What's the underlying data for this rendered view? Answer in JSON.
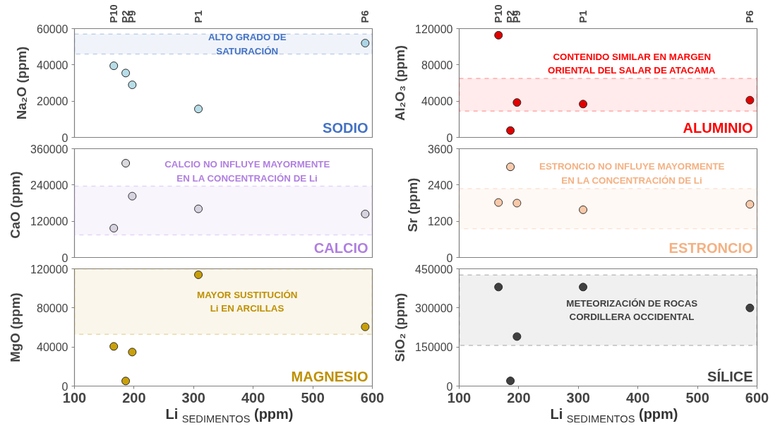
{
  "chart_data": [
    {
      "type": "scatter",
      "title": "SODIO",
      "ylabel": "Na₂O (ppm)",
      "x": [
        166,
        186,
        197,
        308,
        588
      ],
      "series": [
        {
          "color": "#b7dde8",
          "values": [
            39500,
            35500,
            29000,
            15700,
            52000
          ]
        }
      ],
      "xlim": [
        100,
        600
      ],
      "ylim": [
        0,
        60000
      ],
      "yticks": [
        0,
        20000,
        40000,
        60000
      ],
      "annotations": [
        "P10",
        "P2",
        "P9",
        "P1",
        "P6"
      ],
      "bands": [
        {
          "axis": "y",
          "from": 46000,
          "to": 57000,
          "label": "ALTO GRADO DE\nSATURACIÓN",
          "color": "#4472c4"
        }
      ],
      "tick_labels": "y",
      "marker": "circle",
      "grid": false
    },
    {
      "type": "scatter",
      "title": "ALUMINIO",
      "ylabel": "Al₂O₃ (ppm)",
      "x": [
        166,
        186,
        197,
        308,
        588
      ],
      "series": [
        {
          "color": "#e00000",
          "values": [
            112700,
            7600,
            38500,
            36800,
            41100
          ]
        }
      ],
      "xlim": [
        100,
        600
      ],
      "ylim": [
        0,
        120000
      ],
      "yticks": [
        0,
        40000,
        80000,
        120000
      ],
      "annotations": [
        "P10",
        "P2",
        "P9",
        "P1",
        "P6"
      ],
      "bands": [
        {
          "axis": "y",
          "from": 29000,
          "to": 65000,
          "label": "CONTENIDO SIMILAR EN MARGEN\nORIENTAL DEL SALAR DE ATACAMA",
          "color": "#ff0000"
        }
      ],
      "tick_labels": "y",
      "marker": "circle",
      "grid": false
    },
    {
      "type": "scatter",
      "title": "CALCIO",
      "ylabel": "CaO  (ppm)",
      "x": [
        166,
        186,
        197,
        308,
        588
      ],
      "series": [
        {
          "color": "#d9d9de",
          "values": [
            97000,
            312000,
            203000,
            161000,
            144000
          ]
        }
      ],
      "xlim": [
        100,
        600
      ],
      "ylim": [
        0,
        360000
      ],
      "yticks": [
        0,
        120000,
        240000,
        360000
      ],
      "bands": [
        {
          "axis": "y",
          "from": 75000,
          "to": 236000,
          "label": "CALCIO NO INFLUYE MAYORMENTE\nEN LA CONCENTRACIÓN DE Li",
          "color": "#b07fe0"
        }
      ],
      "tick_labels": "y",
      "marker": "circle",
      "grid": false
    },
    {
      "type": "scatter",
      "title": "ESTRONCIO",
      "ylabel": "Sr  (ppm)",
      "x": [
        166,
        186,
        197,
        308,
        588
      ],
      "series": [
        {
          "color": "#f8cbad",
          "values": [
            1820,
            3000,
            1800,
            1580,
            1760
          ]
        }
      ],
      "xlim": [
        100,
        600
      ],
      "ylim": [
        0,
        3600
      ],
      "yticks": [
        0,
        1200,
        2400,
        3600
      ],
      "bands": [
        {
          "axis": "y",
          "from": 950,
          "to": 2280,
          "label": "ESTRONCIO NO INFLUYE MAYORMENTE\nEN LA CONCENTRACIÓN DE Li",
          "color": "#f4b183"
        }
      ],
      "tick_labels": "y",
      "marker": "circle",
      "grid": false
    },
    {
      "type": "scatter",
      "title": "MAGNESIO",
      "ylabel": "MgO (ppm)",
      "xlabel": "Li $_{SEDIMENTOS}$ (ppm)",
      "x": [
        166,
        186,
        197,
        308,
        588
      ],
      "series": [
        {
          "color": "#c9a00b",
          "values": [
            40600,
            5200,
            34800,
            113900,
            60600
          ]
        }
      ],
      "xlim": [
        100,
        600
      ],
      "xticks": [
        100,
        200,
        300,
        400,
        500,
        600
      ],
      "ylim": [
        0,
        120000
      ],
      "yticks": [
        0,
        40000,
        80000,
        120000
      ],
      "bands": [
        {
          "axis": "y",
          "from": 53000,
          "to": 120000,
          "label": "MAYOR SUSTITUCIÓN\nLi EN ARCILLAS",
          "color": "#bf9000"
        }
      ],
      "marker": "circle",
      "grid": false
    },
    {
      "type": "scatter",
      "title": "SÍLICE",
      "ylabel": "SiO₂ (ppm)",
      "xlabel": "Li $_{SEDIMENTOS}$ (ppm)",
      "x": [
        166,
        186,
        197,
        308,
        588
      ],
      "series": [
        {
          "color": "#404040",
          "values": [
            380000,
            20000,
            190000,
            380000,
            300000
          ]
        }
      ],
      "xlim": [
        100,
        600
      ],
      "xticks": [
        100,
        200,
        300,
        400,
        500,
        600
      ],
      "ylim": [
        0,
        450000
      ],
      "yticks": [
        0,
        150000,
        300000,
        450000
      ],
      "bands": [
        {
          "axis": "y",
          "from": 156000,
          "to": 426000,
          "label": "METEORIZACIÓN DE ROCAS\nCORDILLERA OCCIDENTAL",
          "color": "#404040"
        }
      ],
      "marker": "circle",
      "grid": false
    }
  ]
}
